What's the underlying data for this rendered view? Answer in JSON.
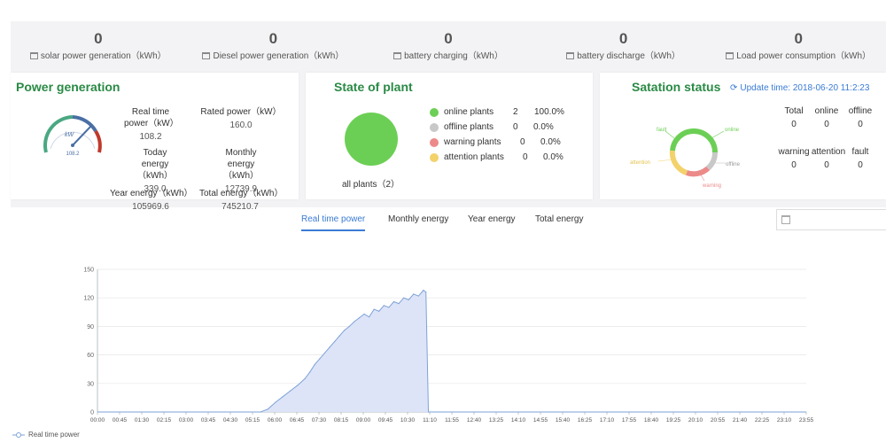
{
  "stats": [
    {
      "value": "0",
      "label": "solar power generation（kWh）"
    },
    {
      "value": "0",
      "label": "Diesel power generation（kWh）"
    },
    {
      "value": "0",
      "label": "battery charging（kWh）"
    },
    {
      "value": "0",
      "label": "battery discharge（kWh）"
    },
    {
      "value": "0",
      "label": "Load power consumption（kWh）"
    }
  ],
  "power": {
    "title": "Power generation",
    "gauge_unit": "kW",
    "gauge_value": "108.2",
    "realtime_label": "Real time power（kW）",
    "realtime_value": "108.2",
    "rated_label": "Rated power（kW）",
    "rated_value": "160.0",
    "today_label": "Today energy（kWh）",
    "today_value": "339.0",
    "monthly_label": "Monthly energy（kWh）",
    "monthly_value": "12739.9",
    "year_label": "Year energy（kWh）",
    "year_value": "105969.6",
    "total_label": "Total energy（kWh）",
    "total_value": "745210.7"
  },
  "plant": {
    "title": "State of plant",
    "all_label": "all plants（2）",
    "rows": [
      {
        "label": "online plants",
        "count": "2",
        "pct": "100.0%",
        "color": "#6ccf55"
      },
      {
        "label": "offline plants",
        "count": "0",
        "pct": "0.0%",
        "color": "#c8c8c8"
      },
      {
        "label": "warning plants",
        "count": "0",
        "pct": "0.0%",
        "color": "#ec8a8a"
      },
      {
        "label": "attention plants",
        "count": "0",
        "pct": "0.0%",
        "color": "#f3d26c"
      }
    ]
  },
  "station": {
    "title": "Satation status",
    "update_label": "Update time:",
    "update_time": "2018-06-20 11:2:23",
    "ring_labels": {
      "fault": "fault",
      "online": "online",
      "offline": "offline",
      "warning": "warning",
      "attention": "attention"
    },
    "headers1": [
      "Total",
      "online",
      "offline"
    ],
    "values1": [
      "0",
      "0",
      "0"
    ],
    "headers2": [
      "warning",
      "attention",
      "fault"
    ],
    "values2": [
      "0",
      "0",
      "0"
    ]
  },
  "tabs": [
    "Real time power",
    "Monthly energy",
    "Year energy",
    "Total energy"
  ],
  "active_tab": 0,
  "chart_data": {
    "type": "area",
    "title": "",
    "series": [
      {
        "name": "Real time power",
        "color": "#7ea2d8",
        "fill": "#dde4f8"
      }
    ],
    "ylim": [
      0,
      150
    ],
    "yticks": [
      0,
      30,
      60,
      90,
      120,
      150
    ],
    "xlabels": [
      "00:00",
      "00:45",
      "01:30",
      "02:15",
      "03:00",
      "03:45",
      "04:30",
      "05:15",
      "06:00",
      "06:45",
      "07:30",
      "08:15",
      "09:00",
      "09:45",
      "10:30",
      "11:10",
      "11:55",
      "12:40",
      "13:25",
      "14:10",
      "14:55",
      "15:40",
      "16:25",
      "17:10",
      "17:55",
      "18:40",
      "19:25",
      "20:10",
      "20:55",
      "21:40",
      "22:25",
      "23:10",
      "23:55"
    ],
    "x": [
      "05:30",
      "05:45",
      "06:00",
      "06:15",
      "06:30",
      "06:45",
      "07:00",
      "07:10",
      "07:20",
      "07:30",
      "07:40",
      "07:50",
      "08:00",
      "08:10",
      "08:20",
      "08:30",
      "08:40",
      "08:50",
      "09:00",
      "09:10",
      "09:20",
      "09:30",
      "09:40",
      "09:50",
      "10:00",
      "10:10",
      "10:20",
      "10:30",
      "10:40",
      "10:50",
      "11:00",
      "11:05",
      "11:10"
    ],
    "values": [
      0,
      3,
      10,
      16,
      22,
      28,
      35,
      42,
      50,
      56,
      62,
      68,
      74,
      80,
      86,
      90,
      95,
      99,
      103,
      100,
      108,
      106,
      112,
      110,
      116,
      114,
      120,
      118,
      124,
      122,
      128,
      126,
      0
    ],
    "grid": true,
    "legend_position": "bottom-left"
  }
}
